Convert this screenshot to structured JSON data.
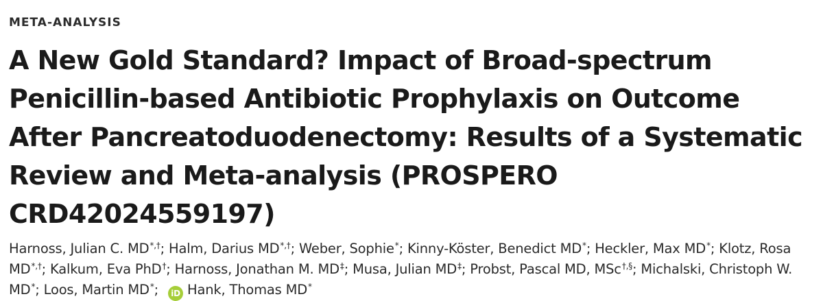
{
  "section_label": "META-ANALYSIS",
  "title": {
    "lines": [
      "A New Gold Standard? Impact of Broad-spectrum",
      "Penicillin-based Antibiotic Prophylaxis on Outcome",
      "After Pancreatoduodenectomy: Results of a Systematic",
      "Review and Meta-analysis (PROSPERO CRD42024559197)"
    ]
  },
  "authors": [
    {
      "name": "Harnoss, Julian C. MD",
      "affiliation": "*,†"
    },
    {
      "name": "Halm, Darius MD",
      "affiliation": "*,†"
    },
    {
      "name": "Weber, Sophie",
      "affiliation": "*"
    },
    {
      "name": "Kinny-Köster, Benedict MD",
      "affiliation": "*"
    },
    {
      "name": "Heckler, Max MD",
      "affiliation": "*"
    },
    {
      "name": "Klotz, Rosa MD",
      "affiliation": "*,†"
    },
    {
      "name": "Kalkum, Eva PhD",
      "affiliation": "†"
    },
    {
      "name": "Harnoss, Jonathan M. MD",
      "affiliation": "‡"
    },
    {
      "name": "Musa, Julian MD",
      "affiliation": "‡"
    },
    {
      "name": "Probst, Pascal MD, MSc",
      "affiliation": "†,§"
    },
    {
      "name": "Michalski, Christoph W. MD",
      "affiliation": "*"
    },
    {
      "name": "Loos, Martin MD",
      "affiliation": "*"
    },
    {
      "name": "Hank, Thomas MD",
      "affiliation": "*"
    }
  ],
  "orcid": {
    "icon": "orcid-icon",
    "label": "iD",
    "color": "#a6ce39"
  },
  "separator": "; "
}
